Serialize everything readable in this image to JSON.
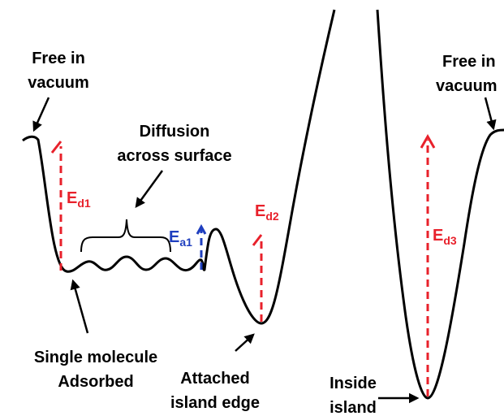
{
  "labels": {
    "free_left": {
      "lines": [
        "Free in",
        "vacuum"
      ]
    },
    "free_right": {
      "lines": [
        "Free in",
        "vacuum"
      ]
    },
    "diffusion": {
      "lines": [
        "Diffusion",
        "across surface"
      ]
    },
    "single": {
      "lines": [
        "Single molecule",
        "Adsorbed"
      ]
    },
    "attached": {
      "lines": [
        "Attached",
        "island edge"
      ]
    },
    "inside": {
      "lines": [
        "Inside",
        "island"
      ]
    }
  },
  "energies": [
    {
      "symbol": "E",
      "subscript": "d1"
    },
    {
      "symbol": "E",
      "subscript": "a1"
    },
    {
      "symbol": "E",
      "subscript": "d2"
    },
    {
      "symbol": "E",
      "subscript": "d3"
    }
  ]
}
